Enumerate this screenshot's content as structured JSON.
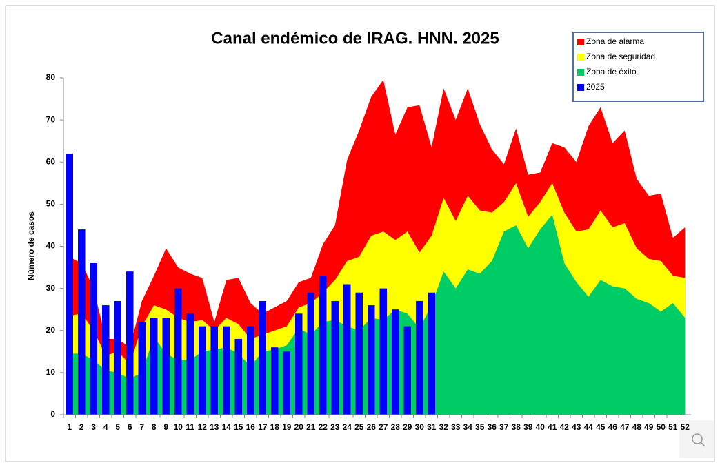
{
  "chart_data": {
    "type": "area",
    "title": "Canal endémico de IRAG. HNN. 2025",
    "y_label": "Número de casos",
    "categories": [
      "1",
      "2",
      "3",
      "4",
      "5",
      "6",
      "7",
      "8",
      "9",
      "10",
      "11",
      "12",
      "13",
      "14",
      "15",
      "16",
      "17",
      "18",
      "19",
      "20",
      "21",
      "22",
      "23",
      "24",
      "25",
      "26",
      "27",
      "28",
      "29",
      "30",
      "31",
      "32",
      "33",
      "34",
      "35",
      "36",
      "37",
      "38",
      "39",
      "40",
      "41",
      "42",
      "43",
      "44",
      "45",
      "46",
      "47",
      "48",
      "49",
      "50",
      "51",
      "52"
    ],
    "series": [
      {
        "name": "Zona de alarma",
        "color": "#ff0000",
        "type": "area",
        "values": [
          37.5,
          36,
          30,
          18,
          18,
          16,
          27,
          33,
          39.5,
          35,
          33.5,
          32.5,
          22,
          32,
          32.5,
          26.5,
          24,
          25.5,
          27,
          31.5,
          32.5,
          40.5,
          45,
          60.5,
          67.5,
          75.5,
          79.5,
          66.5,
          73,
          73.5,
          63.5,
          77.5,
          70,
          77.5,
          69,
          63,
          59.5,
          68,
          57,
          57.5,
          64.5,
          63.5,
          60,
          68.5,
          73,
          64.5,
          67.5,
          56,
          52,
          52.5,
          42,
          44.5
        ]
      },
      {
        "name": "Zona de seguridad",
        "color": "#ffff00",
        "type": "area",
        "values": [
          23.5,
          24,
          20,
          14,
          15,
          12,
          21,
          26,
          25,
          23,
          22,
          22.5,
          20,
          23,
          21.5,
          18,
          19,
          20,
          21,
          25.5,
          26.5,
          29,
          32,
          36.5,
          37.5,
          42.5,
          43.5,
          41.5,
          43.5,
          38.5,
          42.5,
          51.5,
          46,
          52,
          48.5,
          48,
          50.5,
          55,
          47,
          50.5,
          55,
          48,
          43.5,
          44,
          48.5,
          44.5,
          45.5,
          39.5,
          37,
          36.5,
          33,
          32.5
        ]
      },
      {
        "name": "Zona de éxito",
        "color": "#00cc66",
        "type": "area",
        "values": [
          14.5,
          14.5,
          13,
          10.5,
          10,
          8.5,
          10,
          18.5,
          14.5,
          13,
          13,
          15,
          15.5,
          16,
          14.5,
          11.5,
          15,
          15.5,
          16.5,
          20.5,
          19,
          22,
          22.5,
          21,
          20,
          23,
          22.5,
          25,
          24,
          20.5,
          26,
          34,
          30,
          34.5,
          33.5,
          36.5,
          43.5,
          45,
          39.5,
          44,
          47.5,
          36,
          31.5,
          28,
          32,
          30.5,
          30,
          27.5,
          26.5,
          24.5,
          26.5,
          23
        ]
      },
      {
        "name": "2025",
        "color": "#0000ff",
        "type": "bar",
        "values": [
          62,
          44,
          36,
          26,
          27,
          34,
          22,
          23,
          23,
          30,
          24,
          21,
          21,
          21,
          18,
          21,
          27,
          16,
          15,
          24,
          29,
          33,
          27,
          31,
          29,
          26,
          30,
          25,
          21,
          27,
          29,
          null,
          null,
          null,
          null,
          null,
          null,
          null,
          null,
          null,
          null,
          null,
          null,
          null,
          null,
          null,
          null,
          null,
          null,
          null,
          null,
          null
        ]
      }
    ],
    "ylim": [
      0,
      80
    ],
    "yticks": [
      0,
      10,
      20,
      30,
      40,
      50,
      60,
      70,
      80
    ],
    "legend": "upper right"
  }
}
